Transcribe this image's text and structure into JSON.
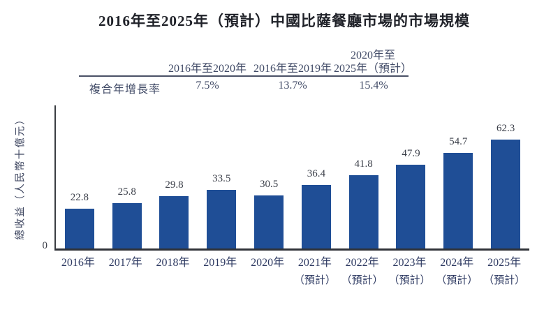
{
  "title": "2016年至2025年（預計）中國比薩餐廳市場的市場規模",
  "colors": {
    "bar": "#1F4E96",
    "axis": "#2F3238",
    "table_text": "#404A66",
    "x_label_text": "#2F3B63",
    "value_label_text": "#3A3E48",
    "title_text": "#1F2128"
  },
  "cagr_table": {
    "row_label": "複合年增長率",
    "columns": [
      {
        "header_line1": "",
        "header_line2": "2016年至2020年",
        "value": "7.5%"
      },
      {
        "header_line1": "",
        "header_line2": "2016年至2019年",
        "value": "13.7%"
      },
      {
        "header_line1": "2020年至",
        "header_line2": "2025年（預計）",
        "value": "15.4%"
      }
    ]
  },
  "y_axis": {
    "label": "總收益（人民幣十億元）",
    "tick_zero": "0"
  },
  "chart_data": {
    "type": "bar",
    "title": "2016年至2025年（預計）中國比薩餐廳市場的市場規模",
    "xlabel": "",
    "ylabel": "總收益（人民幣十億元）",
    "categories": [
      "2016年",
      "2017年",
      "2018年",
      "2019年",
      "2020年",
      "2021年",
      "2022年",
      "2023年",
      "2024年",
      "2025年"
    ],
    "category_sublabels": [
      "",
      "",
      "",
      "",
      "",
      "（預計）",
      "（預計）",
      "（預計）",
      "（預計）",
      "（預計）"
    ],
    "values": [
      22.8,
      25.8,
      29.8,
      33.5,
      30.5,
      36.4,
      41.8,
      47.9,
      54.7,
      62.3
    ],
    "ylim": [
      0,
      82
    ],
    "y_tick_labels": [
      "0"
    ],
    "grid": false,
    "legend": null,
    "value_labels_shown": true,
    "annotations": {
      "cagr_2016_2020": "7.5%",
      "cagr_2016_2019": "13.7%",
      "cagr_2020_2025_forecast": "15.4%"
    }
  }
}
